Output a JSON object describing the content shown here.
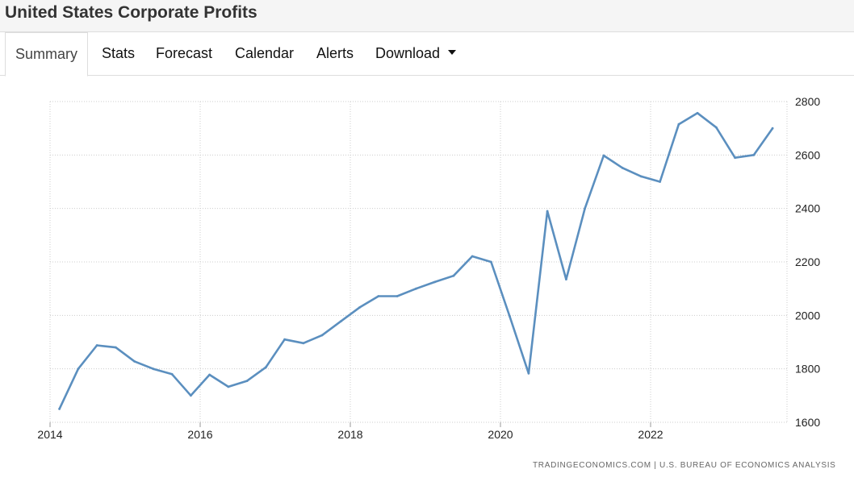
{
  "header": {
    "title": "United States Corporate Profits"
  },
  "tabs": [
    {
      "label": "Summary",
      "active": true
    },
    {
      "label": "Stats",
      "active": false
    },
    {
      "label": "Forecast",
      "active": false
    },
    {
      "label": "Calendar",
      "active": false
    },
    {
      "label": "Alerts",
      "active": false
    },
    {
      "label": "Download",
      "active": false,
      "dropdown": true
    }
  ],
  "source": "TRADINGECONOMICS.COM | U.S. BUREAU OF ECONOMICS ANALYSIS",
  "chart_data": {
    "type": "line",
    "title": "",
    "xlabel": "",
    "ylabel": "",
    "x_ticks": [
      "2014",
      "2016",
      "2018",
      "2020",
      "2022"
    ],
    "y_ticks": [
      "1600",
      "1800",
      "2000",
      "2200",
      "2400",
      "2600",
      "2800"
    ],
    "ylim": [
      1600,
      2800
    ],
    "y_axis_side": "right",
    "grid": true,
    "line_color": "#5b8fbf",
    "series": [
      {
        "x": [
          "2014-Q1",
          "2014-Q2",
          "2014-Q3",
          "2014-Q4",
          "2015-Q1",
          "2015-Q2",
          "2015-Q3",
          "2015-Q4",
          "2016-Q1",
          "2016-Q2",
          "2016-Q3",
          "2016-Q4",
          "2017-Q1",
          "2017-Q2",
          "2017-Q3",
          "2017-Q4",
          "2018-Q1",
          "2018-Q2",
          "2018-Q3",
          "2018-Q4",
          "2019-Q1",
          "2019-Q2",
          "2019-Q3",
          "2019-Q4",
          "2020-Q1",
          "2020-Q2",
          "2020-Q3",
          "2020-Q4",
          "2021-Q1",
          "2021-Q2",
          "2021-Q3",
          "2021-Q4",
          "2022-Q1",
          "2022-Q2",
          "2022-Q3",
          "2022-Q4",
          "2023-Q1",
          "2023-Q2",
          "2023-Q3"
        ],
        "values": [
          1650,
          1800,
          1888,
          1880,
          1828,
          1800,
          1780,
          1700,
          1778,
          1733,
          1755,
          1806,
          1910,
          1896,
          1926,
          1978,
          2030,
          2072,
          2072,
          2100,
          2125,
          2148,
          2221,
          2200,
          1995,
          1783,
          2390,
          2135,
          2400,
          2598,
          2552,
          2520,
          2500,
          2715,
          2757,
          2703,
          2590,
          2600,
          2700
        ]
      }
    ]
  }
}
